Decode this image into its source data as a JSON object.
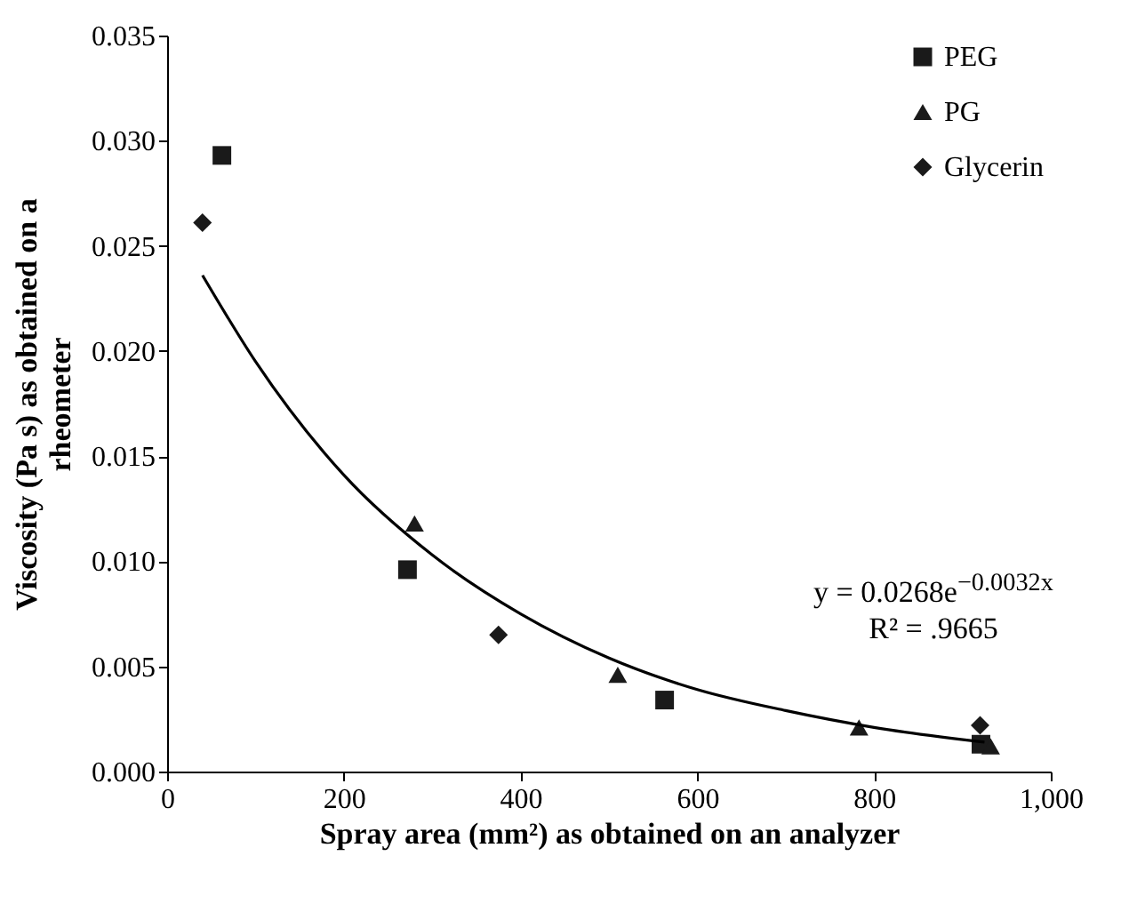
{
  "chart_data": {
    "type": "scatter",
    "xlabel": "Spray area (mm²) as obtained on an analyzer",
    "ylabel": "Viscosity (Pa s) as obtained on a rheometer",
    "xlim": [
      0,
      1000
    ],
    "ylim": [
      0,
      0.035
    ],
    "xticks": [
      {
        "value": 0,
        "label": "0"
      },
      {
        "value": 200,
        "label": "200"
      },
      {
        "value": 400,
        "label": "400"
      },
      {
        "value": 600,
        "label": "600"
      },
      {
        "value": 800,
        "label": "800"
      },
      {
        "value": 1000,
        "label": "1,000"
      }
    ],
    "yticks": [
      {
        "value": 0,
        "label": "0.000"
      },
      {
        "value": 0.005,
        "label": "0.005"
      },
      {
        "value": 0.01,
        "label": "0.010"
      },
      {
        "value": 0.015,
        "label": "0.015"
      },
      {
        "value": 0.02,
        "label": "0.020"
      },
      {
        "value": 0.025,
        "label": "0.025"
      },
      {
        "value": 0.03,
        "label": "0.030"
      },
      {
        "value": 0.035,
        "label": "0.035"
      }
    ],
    "grid": false,
    "legend": "top right",
    "annotations": [
      "y = 0.0268e$^{−0.0032x}$",
      "R² = .9665"
    ],
    "series": [
      {
        "name": "PEG",
        "color": "#1a1a1a",
        "marker": "square",
        "x": [
          62,
          272,
          563,
          921
        ],
        "values": [
          0.0293,
          0.0096,
          0.0034,
          0.0013
        ]
      },
      {
        "name": "PG",
        "color": "#1a1a1a",
        "marker": "triangle",
        "x": [
          280,
          510,
          783,
          932
        ],
        "values": [
          0.0118,
          0.0046,
          0.0021,
          0.0012
        ]
      },
      {
        "name": "Glycerin",
        "color": "#1a1a1a",
        "marker": "diamond",
        "x": [
          40,
          375,
          920
        ],
        "values": [
          0.0261,
          0.0065,
          0.0022
        ]
      },
      {
        "type": "line",
        "color": "#000000",
        "x": [
          40,
          100,
          200,
          300,
          400,
          500,
          600,
          700,
          800,
          925
        ],
        "values": [
          0.0236,
          0.0195,
          0.0141,
          0.0103,
          0.0075,
          0.0054,
          0.0039,
          0.0029,
          0.0021,
          0.0014
        ]
      }
    ]
  }
}
